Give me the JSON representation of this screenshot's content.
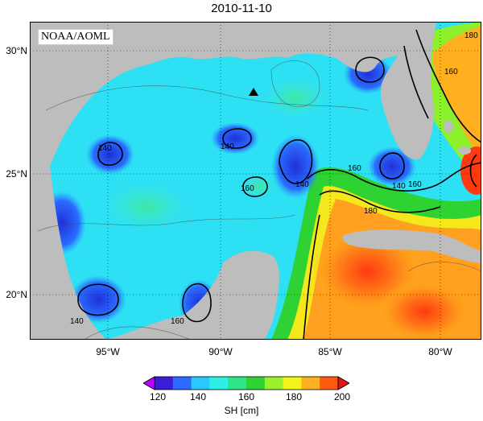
{
  "title": "2010-11-10",
  "credit": "NOAA/AOML",
  "lat_labels": [
    "30°N",
    "25°N",
    "20°N"
  ],
  "lon_labels": [
    "95°W",
    "90°W",
    "85°W",
    "80°W"
  ],
  "contour_labels": [
    "140",
    "140",
    "140",
    "140",
    "160",
    "160",
    "160",
    "160",
    "180",
    "180",
    "160",
    "140"
  ],
  "colorbar": {
    "ticks": [
      "120",
      "140",
      "160",
      "180",
      "200"
    ],
    "title": "SH [cm]",
    "colors": [
      "#c000ff",
      "#3a1ed6",
      "#2d6bff",
      "#29c8ff",
      "#2cefe6",
      "#2ee68a",
      "#2ed232",
      "#9cf02a",
      "#f4f41d",
      "#ffb020",
      "#ff5a14",
      "#e31616"
    ]
  },
  "colors": {
    "land": "#bdbdbd",
    "warm": "#ff7a1a",
    "cool": "#28d8ff"
  }
}
